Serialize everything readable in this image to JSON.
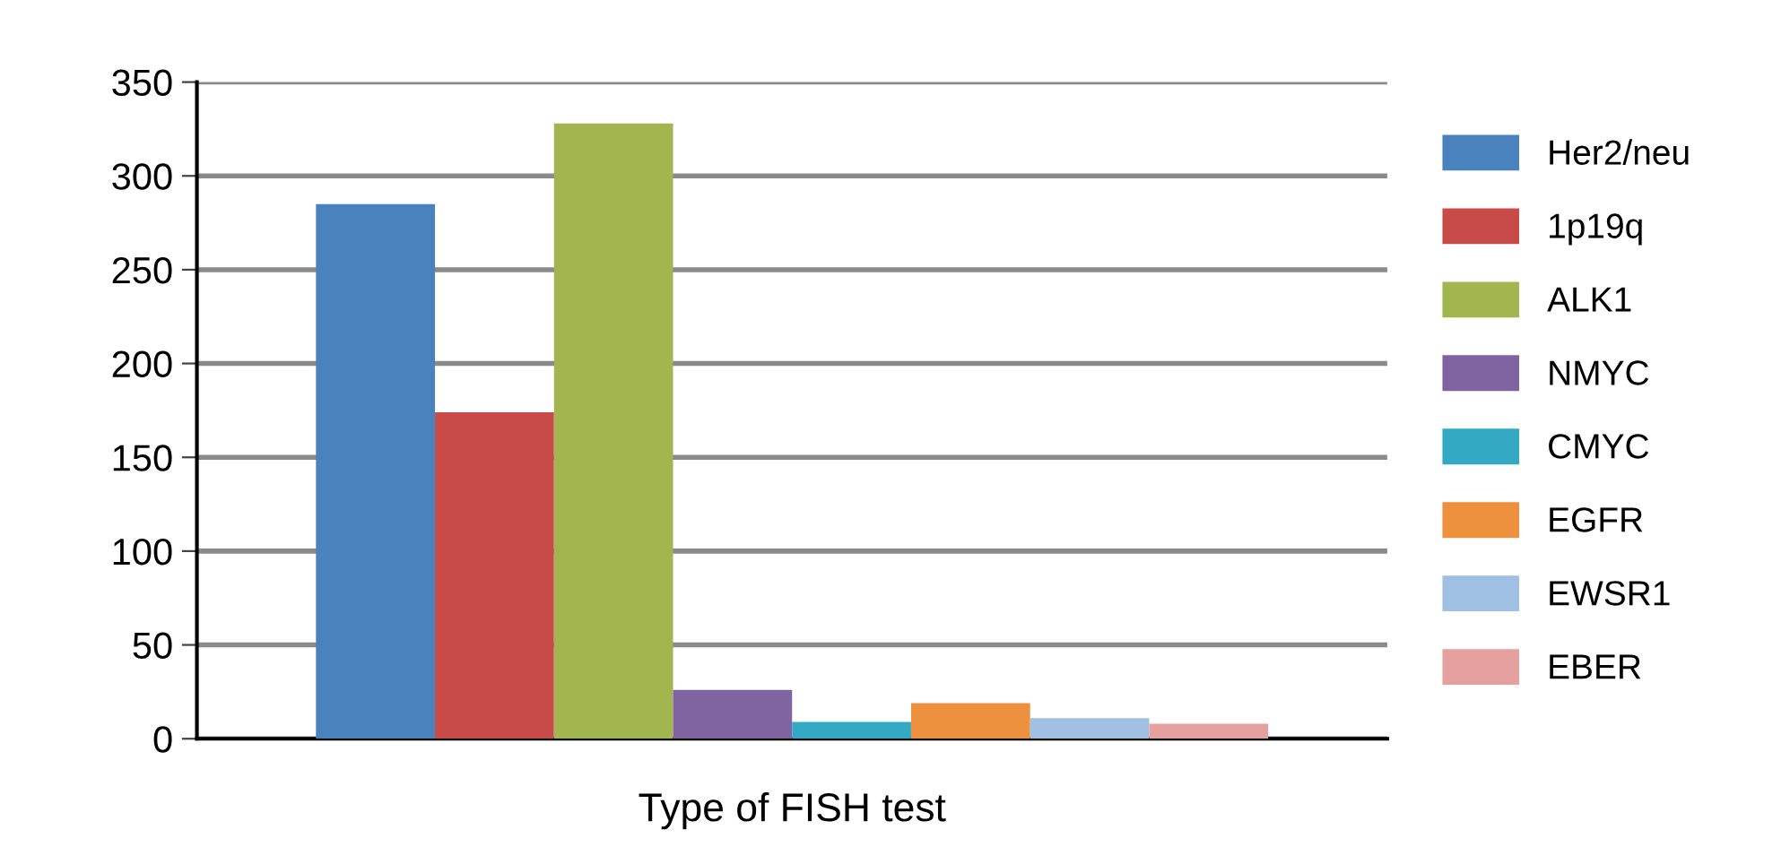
{
  "chart_data": {
    "type": "bar",
    "xlabel": "Type of FISH test",
    "categories": [
      null
    ],
    "series": [
      {
        "name": "Her2/neu",
        "color": "#4a82bd",
        "values": [
          285
        ]
      },
      {
        "name": "1p19q",
        "color": "#c84b4a",
        "values": [
          174
        ]
      },
      {
        "name": "ALK1",
        "color": "#a3b54f",
        "values": [
          328
        ]
      },
      {
        "name": "NMYC",
        "color": "#8064a2",
        "values": [
          26
        ]
      },
      {
        "name": "CMYC",
        "color": "#34a9c4",
        "values": [
          9
        ]
      },
      {
        "name": "EGFR",
        "color": "#ee913f",
        "values": [
          19
        ]
      },
      {
        "name": "EWSR1",
        "color": "#9fbfe3",
        "values": [
          11
        ]
      },
      {
        "name": "EBER",
        "color": "#e4a19f",
        "values": [
          8
        ]
      }
    ],
    "ylim": [
      0,
      350
    ],
    "yticks": [
      0,
      50,
      100,
      150,
      200,
      250,
      300,
      350
    ],
    "grid": "y",
    "legend": "right"
  }
}
